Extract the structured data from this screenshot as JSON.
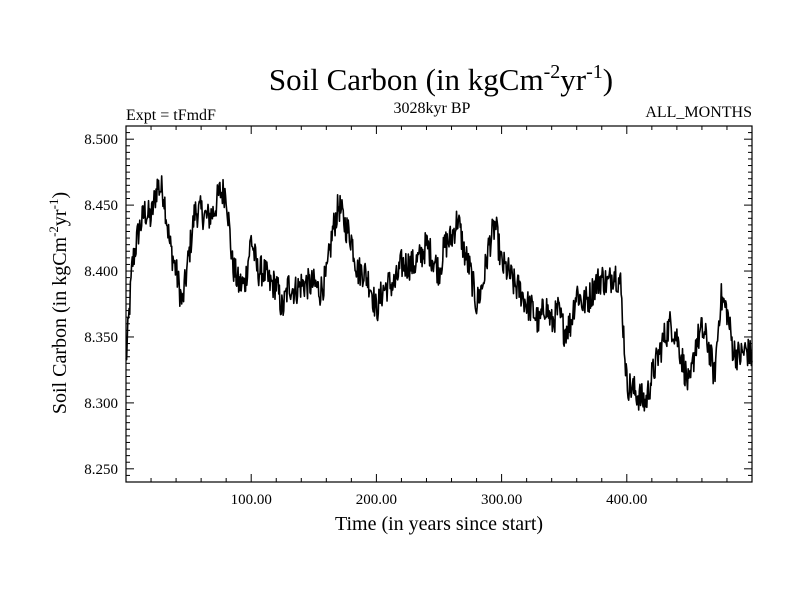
{
  "chart_data": {
    "type": "line",
    "title": {
      "main": "Soil Carbon (in kgCm",
      "sup1": "-2",
      "mid": "yr",
      "sup2": "-1",
      "end": ")"
    },
    "subtitle_left": "Expt = tFmdF",
    "subtitle_center": "3028kyr BP",
    "subtitle_right": "ALL_MONTHS",
    "xlabel": "Time (in years since start)",
    "ylabel": {
      "main": "Soil Carbon (in kgCm",
      "sup1": "-2",
      "mid": "yr",
      "sup2": "-1",
      "end": ")"
    },
    "xlim": [
      0,
      500
    ],
    "ylim": [
      8.24,
      8.51
    ],
    "xticks": [
      100,
      200,
      300,
      400
    ],
    "xtick_labels": [
      "100.00",
      "200.00",
      "300.00",
      "400.00"
    ],
    "yticks": [
      8.25,
      8.3,
      8.35,
      8.4,
      8.45,
      8.5
    ],
    "ytick_labels": [
      "8.250",
      "8.300",
      "8.350",
      "8.400",
      "8.450",
      "8.500"
    ],
    "series": [
      {
        "name": "Soil Carbon",
        "color": "#000000",
        "sample_interval_years": 5,
        "x_start": 0,
        "values": [
          8.33,
          8.405,
          8.43,
          8.445,
          8.44,
          8.465,
          8.46,
          8.42,
          8.4,
          8.375,
          8.41,
          8.445,
          8.445,
          8.44,
          8.445,
          8.46,
          8.46,
          8.405,
          8.39,
          8.39,
          8.425,
          8.4,
          8.4,
          8.39,
          8.39,
          8.37,
          8.39,
          8.385,
          8.39,
          8.39,
          8.39,
          8.385,
          8.395,
          8.43,
          8.45,
          8.435,
          8.425,
          8.4,
          8.4,
          8.39,
          8.37,
          8.385,
          8.39,
          8.39,
          8.405,
          8.405,
          8.405,
          8.41,
          8.42,
          8.41,
          8.4,
          8.42,
          8.425,
          8.44,
          8.415,
          8.4,
          8.375,
          8.39,
          8.42,
          8.435,
          8.405,
          8.4,
          8.39,
          8.385,
          8.375,
          8.37,
          8.36,
          8.375,
          8.36,
          8.37,
          8.355,
          8.36,
          8.385,
          8.375,
          8.38,
          8.39,
          8.395,
          8.39,
          8.4,
          8.39,
          8.315,
          8.31,
          8.305,
          8.3,
          8.32,
          8.335,
          8.35,
          8.36,
          8.35,
          8.33,
          8.31,
          8.345,
          8.355,
          8.345,
          8.32,
          8.38,
          8.37,
          8.34,
          8.335,
          8.34,
          8.335
        ]
      }
    ]
  }
}
